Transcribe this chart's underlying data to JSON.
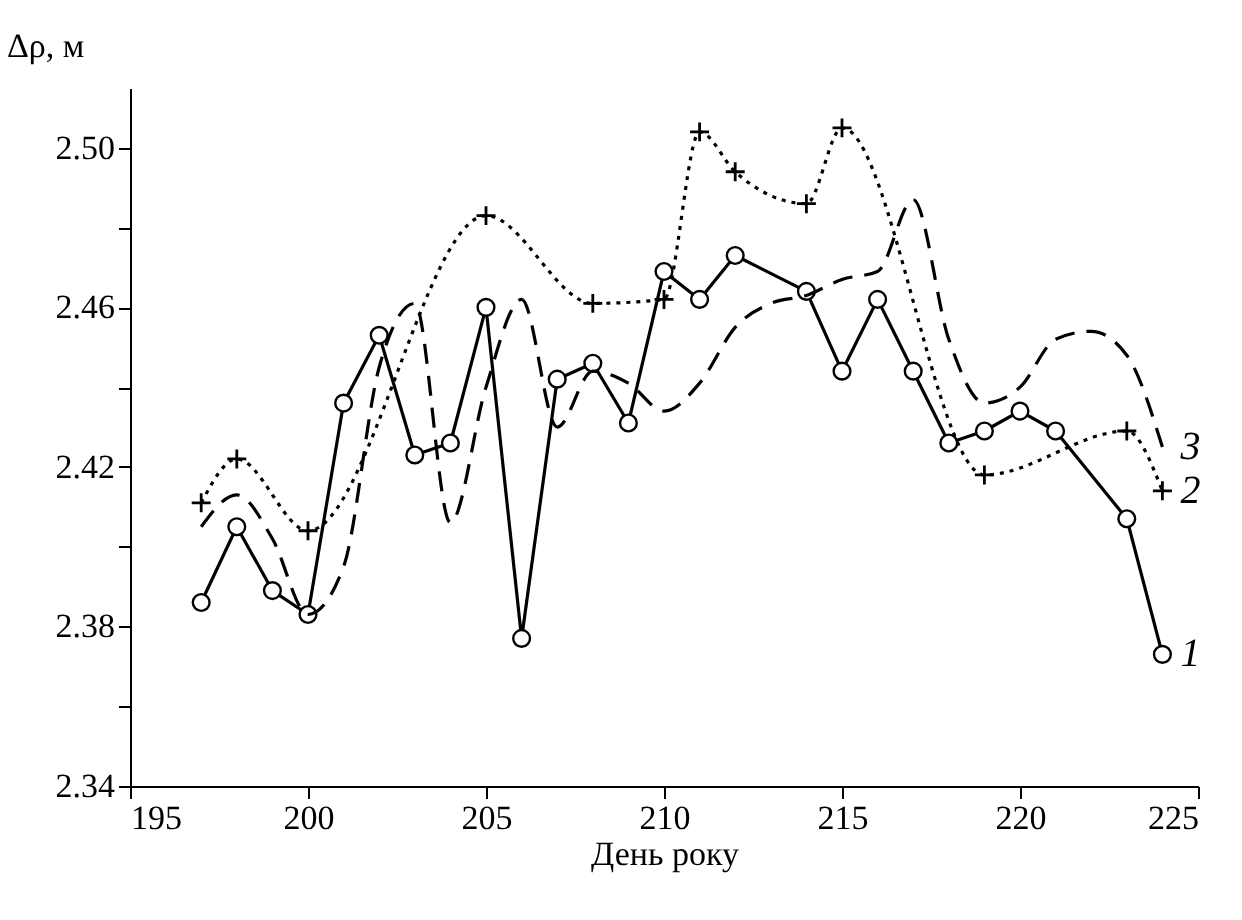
{
  "chart_data": {
    "type": "line",
    "xlabel": "День року",
    "ylabel": "Δρ, м",
    "xlim": [
      195,
      225
    ],
    "xticks": [
      195,
      200,
      205,
      210,
      215,
      220,
      225
    ],
    "ylim": [
      2.34,
      2.515
    ],
    "yticks": [
      2.34,
      {
        "value": 2.36,
        "label": null
      },
      2.38,
      {
        "value": 2.4,
        "label": null
      },
      2.42,
      {
        "value": 2.44,
        "label": null
      },
      2.46,
      {
        "value": 2.48,
        "label": null
      },
      {
        "value": 2.5,
        "label": "2.50"
      }
    ],
    "grid": false,
    "series": [
      {
        "name": "1",
        "color": "#000000",
        "marker": "circle",
        "line_style": "solid",
        "x": [
          197,
          198,
          199,
          200,
          201,
          202,
          203,
          204,
          205,
          206,
          207,
          208,
          209,
          210,
          211,
          212,
          214,
          215,
          216,
          217,
          218,
          219,
          220,
          221,
          223,
          224
        ],
        "values": [
          2.386,
          2.405,
          2.389,
          2.383,
          2.436,
          2.453,
          2.423,
          2.426,
          2.46,
          2.377,
          2.442,
          2.446,
          2.431,
          2.469,
          2.462,
          2.473,
          2.464,
          2.444,
          2.462,
          2.444,
          2.426,
          2.429,
          2.434,
          2.429,
          2.407,
          2.373
        ]
      },
      {
        "name": "2",
        "color": "#000000",
        "marker": "cross",
        "line_style": "dotted",
        "x": [
          197,
          198,
          200,
          205,
          208,
          210,
          211,
          212,
          214,
          215,
          219,
          223,
          224
        ],
        "values": [
          2.411,
          2.422,
          2.404,
          2.483,
          2.461,
          2.462,
          2.504,
          2.494,
          2.486,
          2.505,
          2.418,
          2.429,
          2.414
        ]
      },
      {
        "name": "3",
        "color": "#000000",
        "marker": "none",
        "line_style": "dashed",
        "x": [
          197,
          198,
          199,
          200,
          201,
          202,
          203,
          204,
          205,
          206,
          207,
          208,
          209,
          210,
          211,
          212,
          213,
          214,
          215,
          216,
          217,
          218,
          219,
          220,
          221,
          222,
          223,
          224
        ],
        "values": [
          2.405,
          2.413,
          2.402,
          2.383,
          2.395,
          2.445,
          2.461,
          2.406,
          2.44,
          2.462,
          2.43,
          2.444,
          2.441,
          2.434,
          2.441,
          2.455,
          2.461,
          2.463,
          2.467,
          2.469,
          2.487,
          2.452,
          2.436,
          2.44,
          2.452,
          2.454,
          2.448,
          2.425
        ]
      }
    ]
  }
}
